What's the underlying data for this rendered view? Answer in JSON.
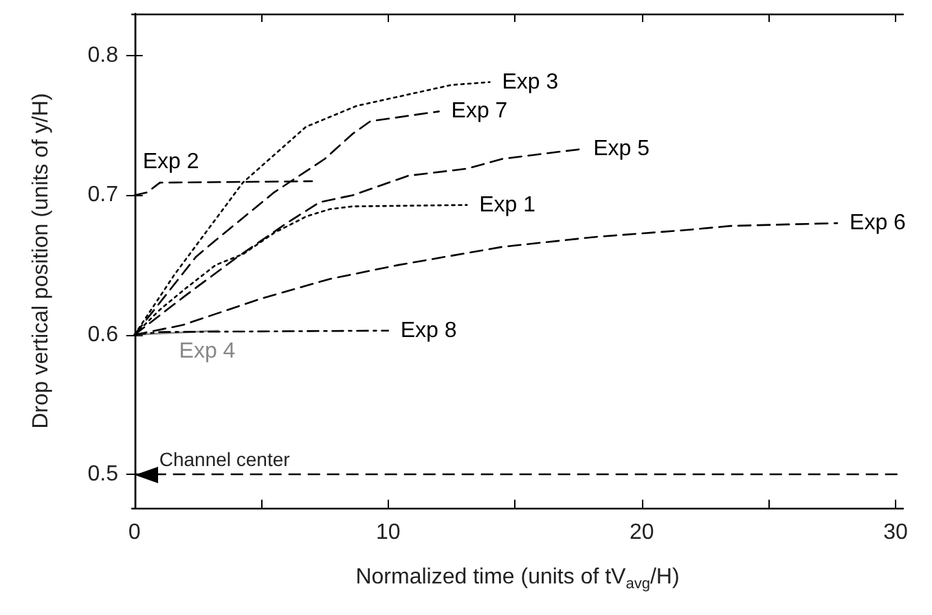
{
  "chart_data": {
    "type": "line",
    "xlabel": "Normalized time (units of tV$_{avg}$/H)",
    "ylabel": "Drop vertical position (units of y/H)",
    "xlim": [
      -0.1,
      30.3
    ],
    "ylim": [
      0.476,
      0.83
    ],
    "xticks": [
      0,
      {
        "value": 5,
        "label": null
      },
      10,
      {
        "value": 15,
        "label": null
      },
      20,
      {
        "value": 25,
        "label": null
      },
      30
    ],
    "yticks": [
      0.5,
      0.6,
      0.7,
      0.8
    ],
    "grid": false,
    "legend": false,
    "series": [
      {
        "name": "Exp 1",
        "color": "#000000",
        "line_style": "dotted",
        "x": [
          0,
          1,
          2,
          3.2,
          4.3,
          5.5,
          6.8,
          7.7,
          8.6,
          13.1
        ],
        "values": [
          0.6,
          0.618,
          0.633,
          0.65,
          0.658,
          0.673,
          0.685,
          0.69,
          0.692,
          0.693
        ]
      },
      {
        "name": "Exp 2",
        "color": "#000000",
        "line_style": "dashed",
        "x": [
          0,
          0.5,
          1,
          7
        ],
        "values": [
          0.7,
          0.702,
          0.709,
          0.71
        ]
      },
      {
        "name": "Exp 3",
        "color": "#000000",
        "line_style": "dotted",
        "x": [
          0,
          1.57,
          4.27,
          6.76,
          8.76,
          12.5,
          14
        ],
        "values": [
          0.6,
          0.643,
          0.709,
          0.749,
          0.764,
          0.779,
          0.781
        ]
      },
      {
        "name": "Exp 4",
        "color": "#888888",
        "line_style": "solid",
        "x": [
          0,
          3.3
        ],
        "values": [
          0.6,
          0.603
        ]
      },
      {
        "name": "Exp 5",
        "color": "#000000",
        "line_style": "dashed",
        "x": [
          0,
          2,
          4,
          6,
          7.3,
          8.6,
          9.7,
          10.8,
          13.1,
          14.5,
          15.8,
          17.6
        ],
        "values": [
          0.6,
          0.628,
          0.655,
          0.68,
          0.695,
          0.7,
          0.707,
          0.714,
          0.719,
          0.726,
          0.729,
          0.733
        ]
      },
      {
        "name": "Exp 6",
        "color": "#000000",
        "line_style": "dashed",
        "x": [
          0,
          1.9,
          5,
          7.7,
          10.4,
          14.5,
          18.1,
          21.7,
          23.5,
          27.7
        ],
        "values": [
          0.6,
          0.607,
          0.626,
          0.64,
          0.65,
          0.663,
          0.67,
          0.675,
          0.678,
          0.68
        ]
      },
      {
        "name": "Exp 7",
        "color": "#000000",
        "line_style": "dashed",
        "x": [
          0,
          2.43,
          3.35,
          5.5,
          7.5,
          8.6,
          9.3,
          12
        ],
        "values": [
          0.6,
          0.656,
          0.67,
          0.702,
          0.726,
          0.744,
          0.753,
          0.76
        ]
      },
      {
        "name": "Exp 8",
        "color": "#000000",
        "line_style": "dashdot",
        "x": [
          0,
          1,
          10
        ],
        "values": [
          0.6,
          0.602,
          0.603
        ]
      }
    ],
    "ref_lines": [
      {
        "axis": "y",
        "value": 0.5,
        "label": "Channel center",
        "color": "#000000",
        "line_style": "dashed"
      }
    ]
  }
}
